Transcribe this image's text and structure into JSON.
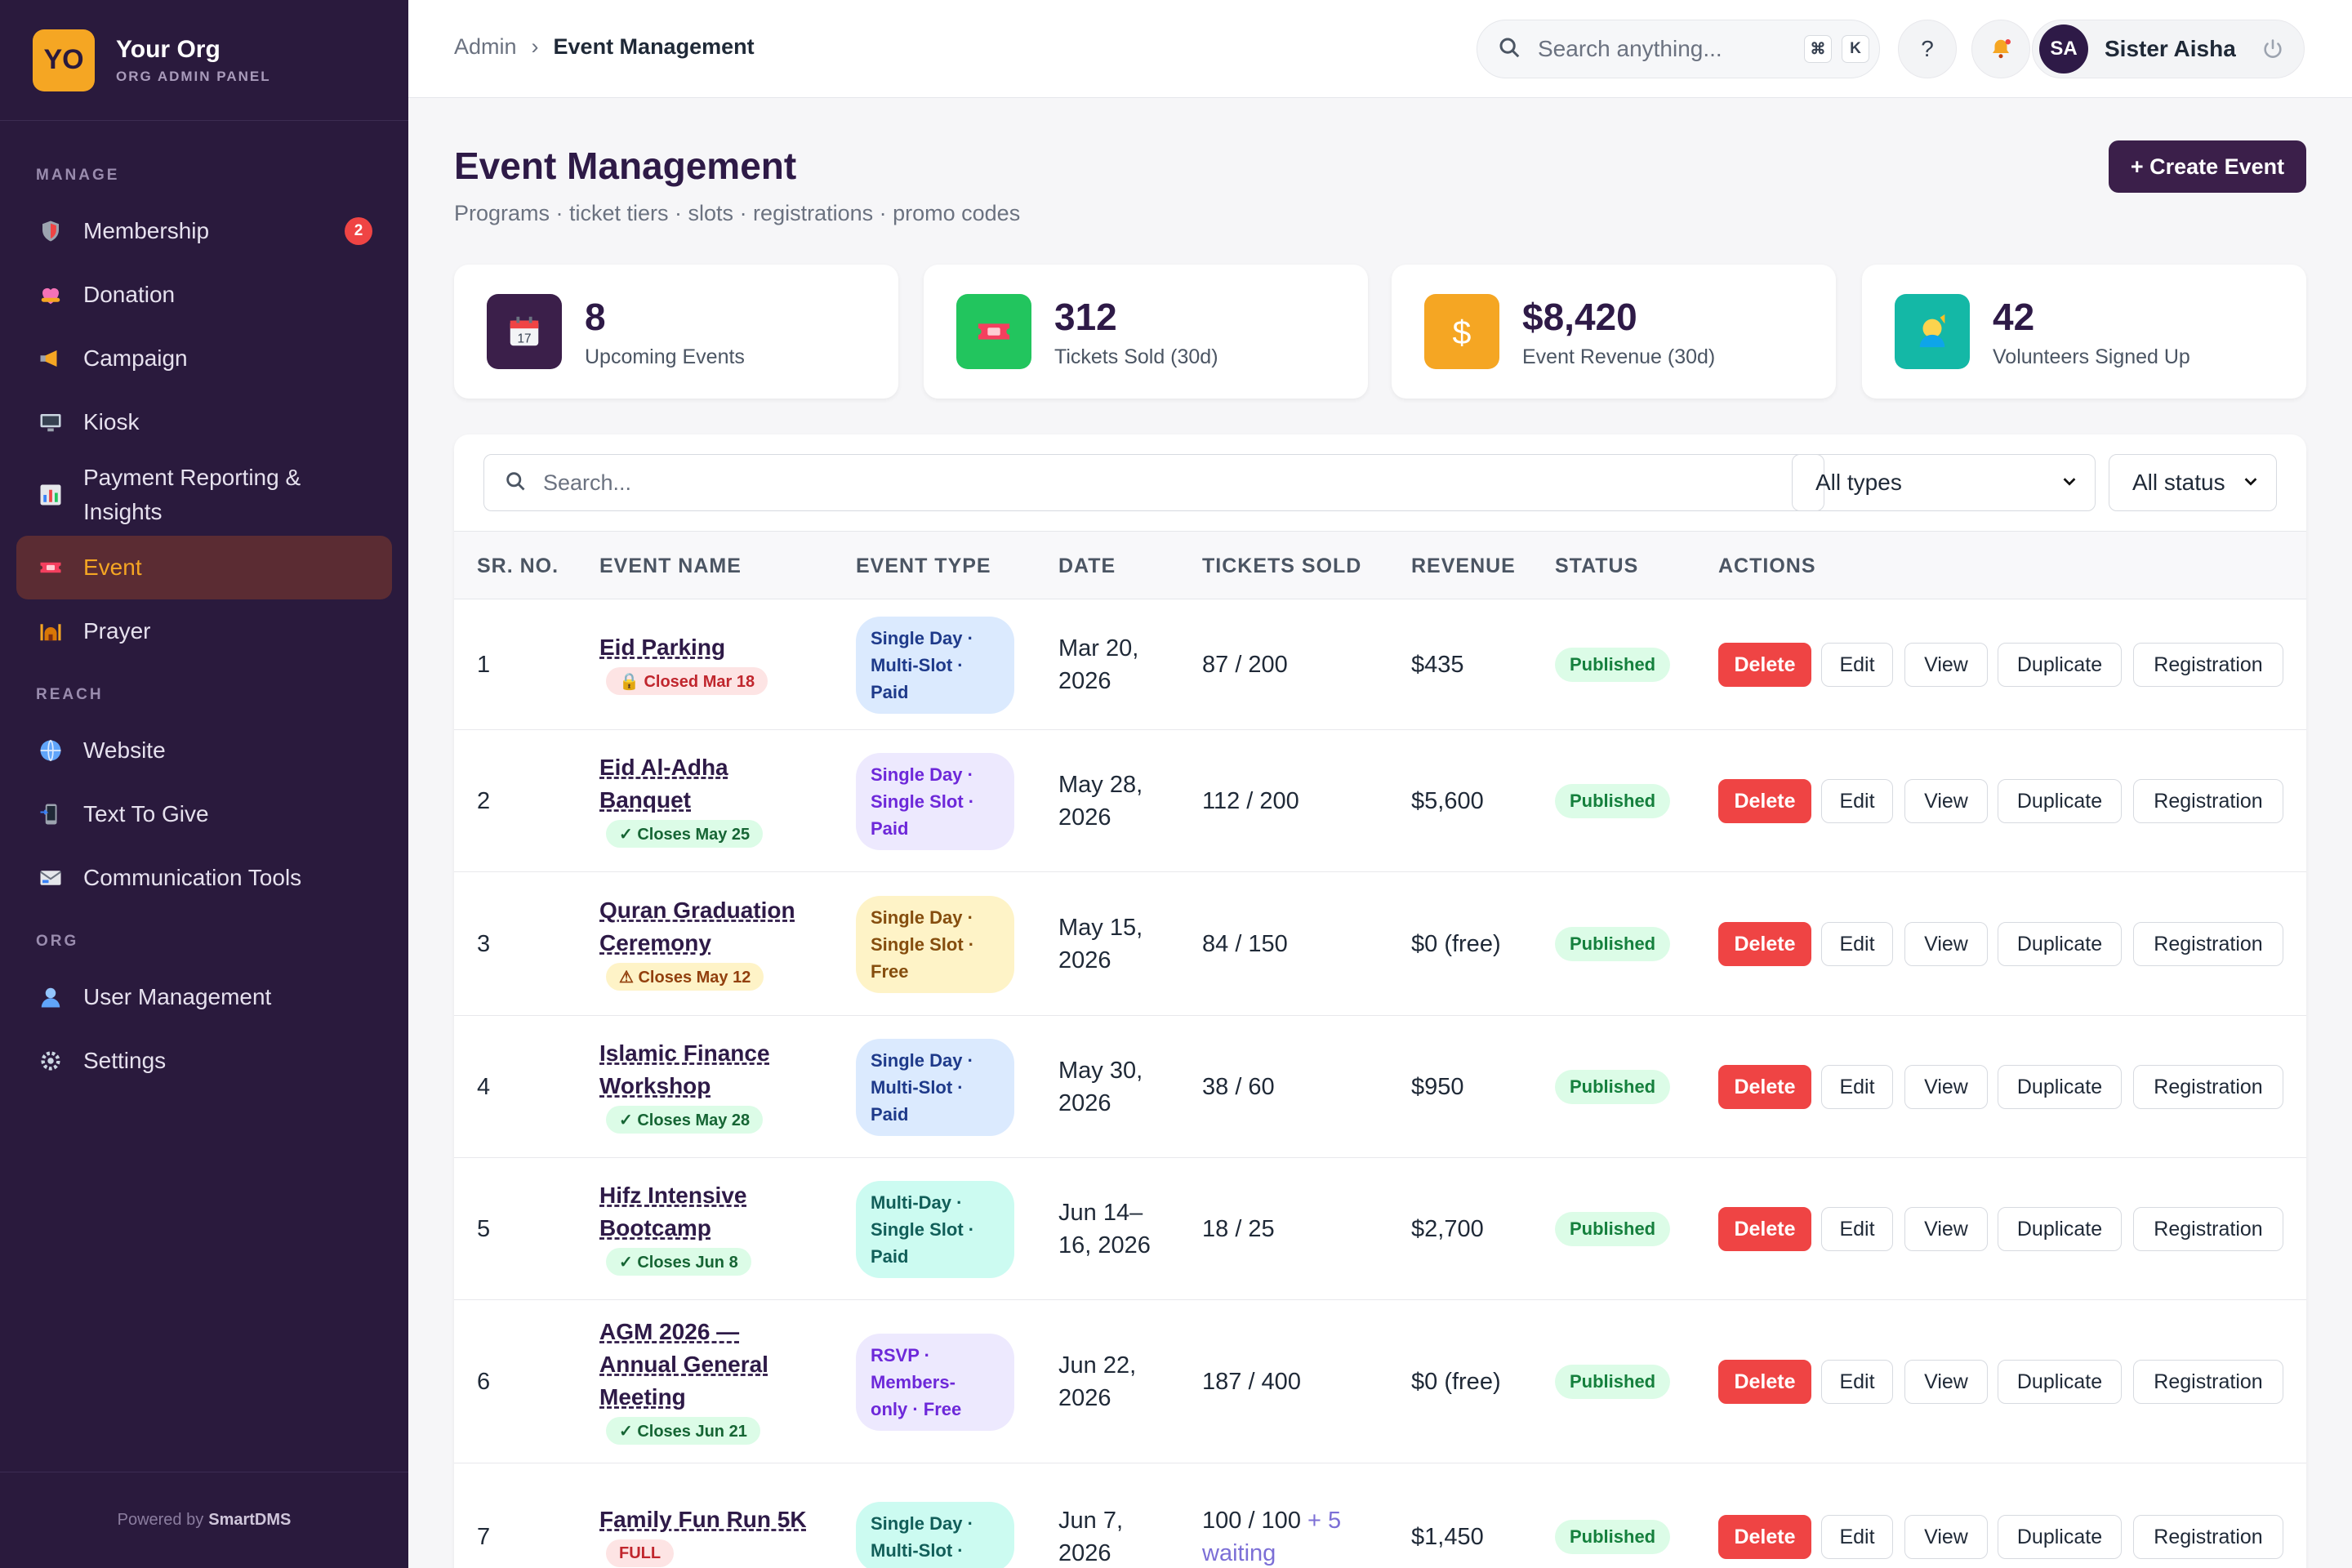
{
  "org": {
    "initials": "YO",
    "name": "Your Org",
    "subtitle": "ORG ADMIN PANEL"
  },
  "sidebar": {
    "sections": [
      {
        "title": "MANAGE"
      },
      {
        "title": "REACH"
      },
      {
        "title": "ORG"
      }
    ],
    "items": [
      {
        "label": "Membership",
        "icon": "shield-icon",
        "badge": "2"
      },
      {
        "label": "Donation",
        "icon": "heart-icon"
      },
      {
        "label": "Campaign",
        "icon": "megaphone-icon"
      },
      {
        "label": "Kiosk",
        "icon": "monitor-icon"
      },
      {
        "label": "Payment Reporting & Insights",
        "icon": "bar-chart-icon"
      },
      {
        "label": "Event",
        "icon": "ticket-icon",
        "active": true
      },
      {
        "label": "Prayer",
        "icon": "mosque-icon"
      },
      {
        "label": "Website",
        "icon": "globe-icon"
      },
      {
        "label": "Text To Give",
        "icon": "phone-icon"
      },
      {
        "label": "Communication Tools",
        "icon": "email-icon"
      },
      {
        "label": "User Management",
        "icon": "user-icon"
      },
      {
        "label": "Settings",
        "icon": "gear-icon"
      }
    ],
    "footer": {
      "prefix": "Powered by",
      "brand": "SmartDMS"
    }
  },
  "topbar": {
    "breadcrumb": [
      "Admin",
      "Event Management"
    ],
    "breadcrumb_sep": "›",
    "search_placeholder": "Search anything...",
    "shortcut": [
      "⌘",
      "K"
    ],
    "help": "?",
    "user": {
      "initials": "SA",
      "name": "Sister Aisha"
    }
  },
  "page": {
    "title": "Event Management",
    "subtitle": "Programs · ticket tiers · slots · registrations · promo codes",
    "create_label": "+ Create Event"
  },
  "stats": [
    {
      "value": "8",
      "label": "Upcoming Events",
      "icon": "calendar-icon",
      "color": "#3b1f4a"
    },
    {
      "value": "312",
      "label": "Tickets Sold (30d)",
      "icon": "ticket-icon",
      "color": "#22c55e"
    },
    {
      "value": "$8,420",
      "label": "Event Revenue (30d)",
      "icon": "dollar-icon",
      "color": "#f5a623"
    },
    {
      "value": "42",
      "label": "Volunteers Signed Up",
      "icon": "volunteer-icon",
      "color": "#14b8a6"
    }
  ],
  "filters": {
    "search_placeholder": "Search...",
    "type_selected": "All types",
    "status_selected": "All status"
  },
  "table": {
    "columns": [
      "SR. NO.",
      "EVENT NAME",
      "EVENT TYPE",
      "DATE",
      "TICKETS SOLD",
      "REVENUE",
      "STATUS",
      "ACTIONS"
    ],
    "actions": [
      "Delete",
      "Edit",
      "View",
      "Duplicate",
      "Registration"
    ],
    "rows": [
      {
        "sr": "1",
        "name_lines": [
          "Eid Parking"
        ],
        "deadline": "🔒 Closed Mar 18",
        "deadline_kind": "red",
        "type_lines": [
          "Single Day ·",
          "Multi-Slot ·",
          "Paid"
        ],
        "type_color": "blue",
        "date_lines": [
          "Mar 20,",
          "2026"
        ],
        "tickets": "87 / 200",
        "tickets_extra": "",
        "revenue": "$435",
        "status": "Published"
      },
      {
        "sr": "2",
        "name_lines": [
          "Eid Al-Adha",
          "Banquet"
        ],
        "deadline": "✓ Closes May 25",
        "deadline_kind": "green",
        "type_lines": [
          "Single Day ·",
          "Single Slot ·",
          "Paid"
        ],
        "type_color": "purple",
        "date_lines": [
          "May 28,",
          "2026"
        ],
        "tickets": "112 / 200",
        "tickets_extra": "",
        "revenue": "$5,600",
        "status": "Published"
      },
      {
        "sr": "3",
        "name_lines": [
          "Quran Graduation",
          "Ceremony"
        ],
        "deadline": "⚠ Closes May 12",
        "deadline_kind": "amber",
        "type_lines": [
          "Single Day ·",
          "Single Slot ·",
          "Free"
        ],
        "type_color": "yellow",
        "date_lines": [
          "May 15,",
          "2026"
        ],
        "tickets": "84 / 150",
        "tickets_extra": "",
        "revenue": "$0 (free)",
        "status": "Published"
      },
      {
        "sr": "4",
        "name_lines": [
          "Islamic Finance",
          "Workshop"
        ],
        "deadline": "✓ Closes May 28",
        "deadline_kind": "green",
        "type_lines": [
          "Single Day ·",
          "Multi-Slot ·",
          "Paid"
        ],
        "type_color": "blue",
        "date_lines": [
          "May 30,",
          "2026"
        ],
        "tickets": "38 / 60",
        "tickets_extra": "",
        "revenue": "$950",
        "status": "Published"
      },
      {
        "sr": "5",
        "name_lines": [
          "Hifz Intensive",
          "Bootcamp"
        ],
        "deadline": "✓ Closes Jun 8",
        "deadline_kind": "green",
        "type_lines": [
          "Multi-Day ·",
          "Single Slot ·",
          "Paid"
        ],
        "type_color": "teal",
        "date_lines": [
          "Jun 14–",
          "16, 2026"
        ],
        "tickets": "18 / 25",
        "tickets_extra": "",
        "revenue": "$2,700",
        "status": "Published"
      },
      {
        "sr": "6",
        "name_lines": [
          "AGM 2026 —",
          "Annual General",
          "Meeting"
        ],
        "deadline": "✓ Closes Jun 21",
        "deadline_kind": "green",
        "type_lines": [
          "RSVP ·",
          "Members-",
          "only · Free"
        ],
        "type_color": "purple",
        "date_lines": [
          "Jun 22,",
          "2026"
        ],
        "tickets": "187 / 400",
        "tickets_extra": "",
        "revenue": "$0 (free)",
        "status": "Published"
      },
      {
        "sr": "7",
        "name_lines": [
          "Family Fun Run 5K"
        ],
        "deadline": "FULL",
        "deadline_kind": "red",
        "type_lines": [
          "Single Day ·",
          "Multi-Slot ·"
        ],
        "type_color": "teal",
        "date_lines": [
          "Jun 7,",
          "2026"
        ],
        "tickets": "100 / 100",
        "tickets_extra": "+ 5",
        "tickets_extra2": "waiting",
        "revenue": "$1,450",
        "status": "Published"
      }
    ]
  }
}
